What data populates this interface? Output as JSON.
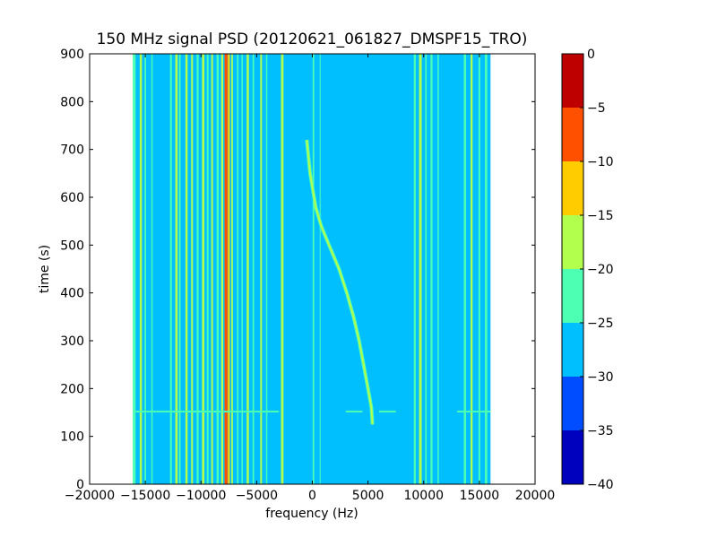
{
  "chart_data": {
    "type": "heatmap",
    "title": "150 MHz signal PSD (20120621_061827_DMSPF15_TRO)",
    "xlabel": "frequency (Hz)",
    "ylabel": "time (s)",
    "xlim": [
      -20000,
      20000
    ],
    "ylim": [
      0,
      900
    ],
    "xticks": [
      -20000,
      -15000,
      -10000,
      -5000,
      0,
      5000,
      10000,
      15000,
      20000
    ],
    "xtick_labels": [
      "−20000",
      "−15000",
      "−10000",
      "−5000",
      "0",
      "5000",
      "10000",
      "15000",
      "20000"
    ],
    "yticks": [
      0,
      100,
      200,
      300,
      400,
      500,
      600,
      700,
      800,
      900
    ],
    "ytick_labels": [
      "0",
      "100",
      "200",
      "300",
      "400",
      "500",
      "600",
      "700",
      "800",
      "900"
    ],
    "data_extent_hz": [
      -16000,
      16000
    ],
    "background_level": -27.5,
    "colorbar": {
      "levels": [
        -40,
        -35,
        -30,
        -25,
        -20,
        -15,
        -10,
        -5,
        0
      ],
      "tick_labels": [
        "−40",
        "−35",
        "−30",
        "−25",
        "−20",
        "−15",
        "−10",
        "−5",
        "0"
      ],
      "colors": [
        "#0000bf",
        "#004dff",
        "#00bfff",
        "#4dffb3",
        "#b3ff4d",
        "#ffcc00",
        "#ff5000",
        "#bf0000"
      ]
    },
    "vertical_lines": [
      {
        "f": -16000,
        "w": 260,
        "level": -22.5
      },
      {
        "f": -15400,
        "w": 200,
        "level": -17.5
      },
      {
        "f": -15000,
        "w": 140,
        "level": -22.5
      },
      {
        "f": -14400,
        "w": 120,
        "level": -22.5
      },
      {
        "f": -12700,
        "w": 160,
        "level": -22.5
      },
      {
        "f": -12200,
        "w": 220,
        "level": -17.5
      },
      {
        "f": -11900,
        "w": 140,
        "level": -22.5
      },
      {
        "f": -11300,
        "w": 200,
        "level": -17.5
      },
      {
        "f": -10800,
        "w": 160,
        "level": -17.5
      },
      {
        "f": -10300,
        "w": 180,
        "level": -22.5
      },
      {
        "f": -9800,
        "w": 220,
        "level": -17.5
      },
      {
        "f": -9400,
        "w": 160,
        "level": -22.5
      },
      {
        "f": -9000,
        "w": 160,
        "level": -17.5
      },
      {
        "f": -8500,
        "w": 200,
        "level": -22.5
      },
      {
        "f": -8100,
        "w": 180,
        "level": -17.5
      },
      {
        "f": -7750,
        "w": 260,
        "level": -7.5
      },
      {
        "f": -7500,
        "w": 180,
        "level": -12.5
      },
      {
        "f": -7200,
        "w": 140,
        "level": -17.5
      },
      {
        "f": -6700,
        "w": 140,
        "level": -22.5
      },
      {
        "f": -6300,
        "w": 120,
        "level": -22.5
      },
      {
        "f": -5800,
        "w": 200,
        "level": -17.5
      },
      {
        "f": -5300,
        "w": 140,
        "level": -22.5
      },
      {
        "f": -4600,
        "w": 160,
        "level": -17.5
      },
      {
        "f": -4100,
        "w": 120,
        "level": -22.5
      },
      {
        "f": -2700,
        "w": 220,
        "level": -17.5
      },
      {
        "f": 100,
        "w": 140,
        "level": -22.5
      },
      {
        "f": 700,
        "w": 80,
        "level": -22.5
      },
      {
        "f": 9200,
        "w": 180,
        "level": -22.5
      },
      {
        "f": 9700,
        "w": 240,
        "level": -17.5
      },
      {
        "f": 10200,
        "w": 140,
        "level": -22.5
      },
      {
        "f": 10700,
        "w": 180,
        "level": -22.5
      },
      {
        "f": 11300,
        "w": 120,
        "level": -22.5
      },
      {
        "f": 13700,
        "w": 200,
        "level": -22.5
      },
      {
        "f": 14300,
        "w": 180,
        "level": -17.5
      },
      {
        "f": 15000,
        "w": 160,
        "level": -22.5
      },
      {
        "f": 15600,
        "w": 220,
        "level": -22.5
      }
    ],
    "doppler_trace": [
      {
        "t": 720,
        "f": -500
      },
      {
        "t": 650,
        "f": -200
      },
      {
        "t": 580,
        "f": 300
      },
      {
        "t": 540,
        "f": 800
      },
      {
        "t": 500,
        "f": 1500
      },
      {
        "t": 450,
        "f": 2400
      },
      {
        "t": 400,
        "f": 3100
      },
      {
        "t": 350,
        "f": 3700
      },
      {
        "t": 300,
        "f": 4200
      },
      {
        "t": 250,
        "f": 4600
      },
      {
        "t": 200,
        "f": 5000
      },
      {
        "t": 160,
        "f": 5300
      },
      {
        "t": 125,
        "f": 5400
      }
    ],
    "horizontal_band_t": 152
  }
}
